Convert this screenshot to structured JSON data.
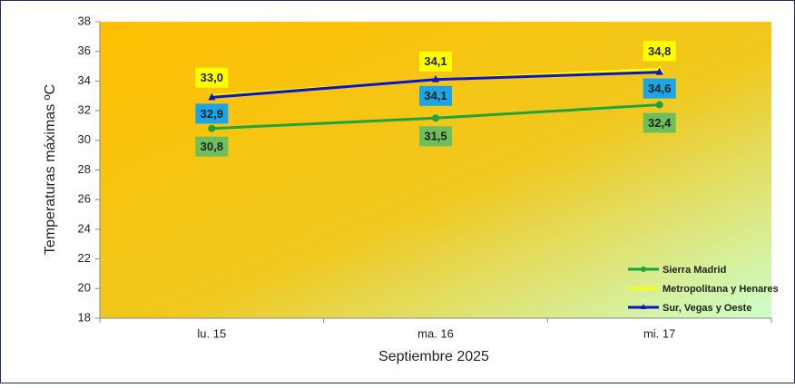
{
  "chart_data": {
    "type": "line",
    "x_label": "Septiembre 2025",
    "y_label": "Temperaturas  máximas ºC",
    "categories": [
      "lu. 15",
      "ma. 16",
      "mi. 17"
    ],
    "ylim": [
      18,
      38
    ],
    "yticks": [
      18,
      20,
      22,
      24,
      26,
      28,
      30,
      32,
      34,
      36,
      38
    ],
    "legend": "bottom-right",
    "series": [
      {
        "name": "Sierra Madrid",
        "color": "#1fa33a",
        "label_color": "#6cbf5a",
        "marker": "circle",
        "values": [
          30.8,
          31.5,
          32.4
        ],
        "value_labels": [
          "30,8",
          "31,5",
          "32,4"
        ]
      },
      {
        "name": "Metropolitana y Henares",
        "color": "#ffff00",
        "label_color": "#ffff00",
        "marker": "triangle",
        "values": [
          33.0,
          34.1,
          34.8
        ],
        "value_labels": [
          "33,0",
          "34,1",
          "34,8"
        ]
      },
      {
        "name": "Sur, Vegas y Oeste",
        "color": "#0a14c8",
        "label_color": "#1aa5e6",
        "marker": "triangle",
        "values": [
          32.9,
          34.1,
          34.6
        ],
        "value_labels": [
          "32,9",
          "34,1",
          "34,6"
        ]
      }
    ]
  }
}
